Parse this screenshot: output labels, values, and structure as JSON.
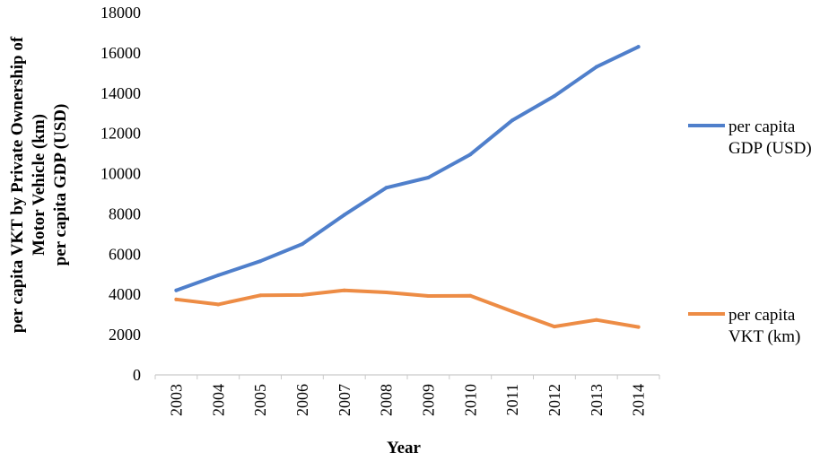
{
  "chart_data": {
    "type": "line",
    "x": [
      "2003",
      "2004",
      "2005",
      "2006",
      "2007",
      "2008",
      "2009",
      "2010",
      "2011",
      "2012",
      "2013",
      "2014"
    ],
    "series": [
      {
        "name": "per capita GDP (USD)",
        "legend_lines": [
          "per capita",
          "GDP (USD)"
        ],
        "color": "#4F7FCB",
        "values": [
          4200,
          4950,
          5650,
          6500,
          7950,
          9300,
          9800,
          10950,
          12650,
          13850,
          15300,
          16300
        ]
      },
      {
        "name": "per capita VKT (km)",
        "legend_lines": [
          " per capita",
          "VKT (km)"
        ],
        "color": "#ED8C45",
        "values": [
          3750,
          3500,
          3950,
          3970,
          4200,
          4100,
          3920,
          3930,
          3150,
          2400,
          2730,
          2380
        ]
      }
    ],
    "y_ticks": [
      "0",
      "2000",
      "4000",
      "6000",
      "8000",
      "10000",
      "12000",
      "14000",
      "16000",
      "18000"
    ],
    "ylim": [
      0,
      18000
    ],
    "xlabel": "Year",
    "ylabel_lines": [
      "per capita VKT by Private Ownership of",
      "Motor Vehicle (km)",
      "per capita GDP (USD)"
    ],
    "grid": false,
    "legend_position": "right"
  }
}
